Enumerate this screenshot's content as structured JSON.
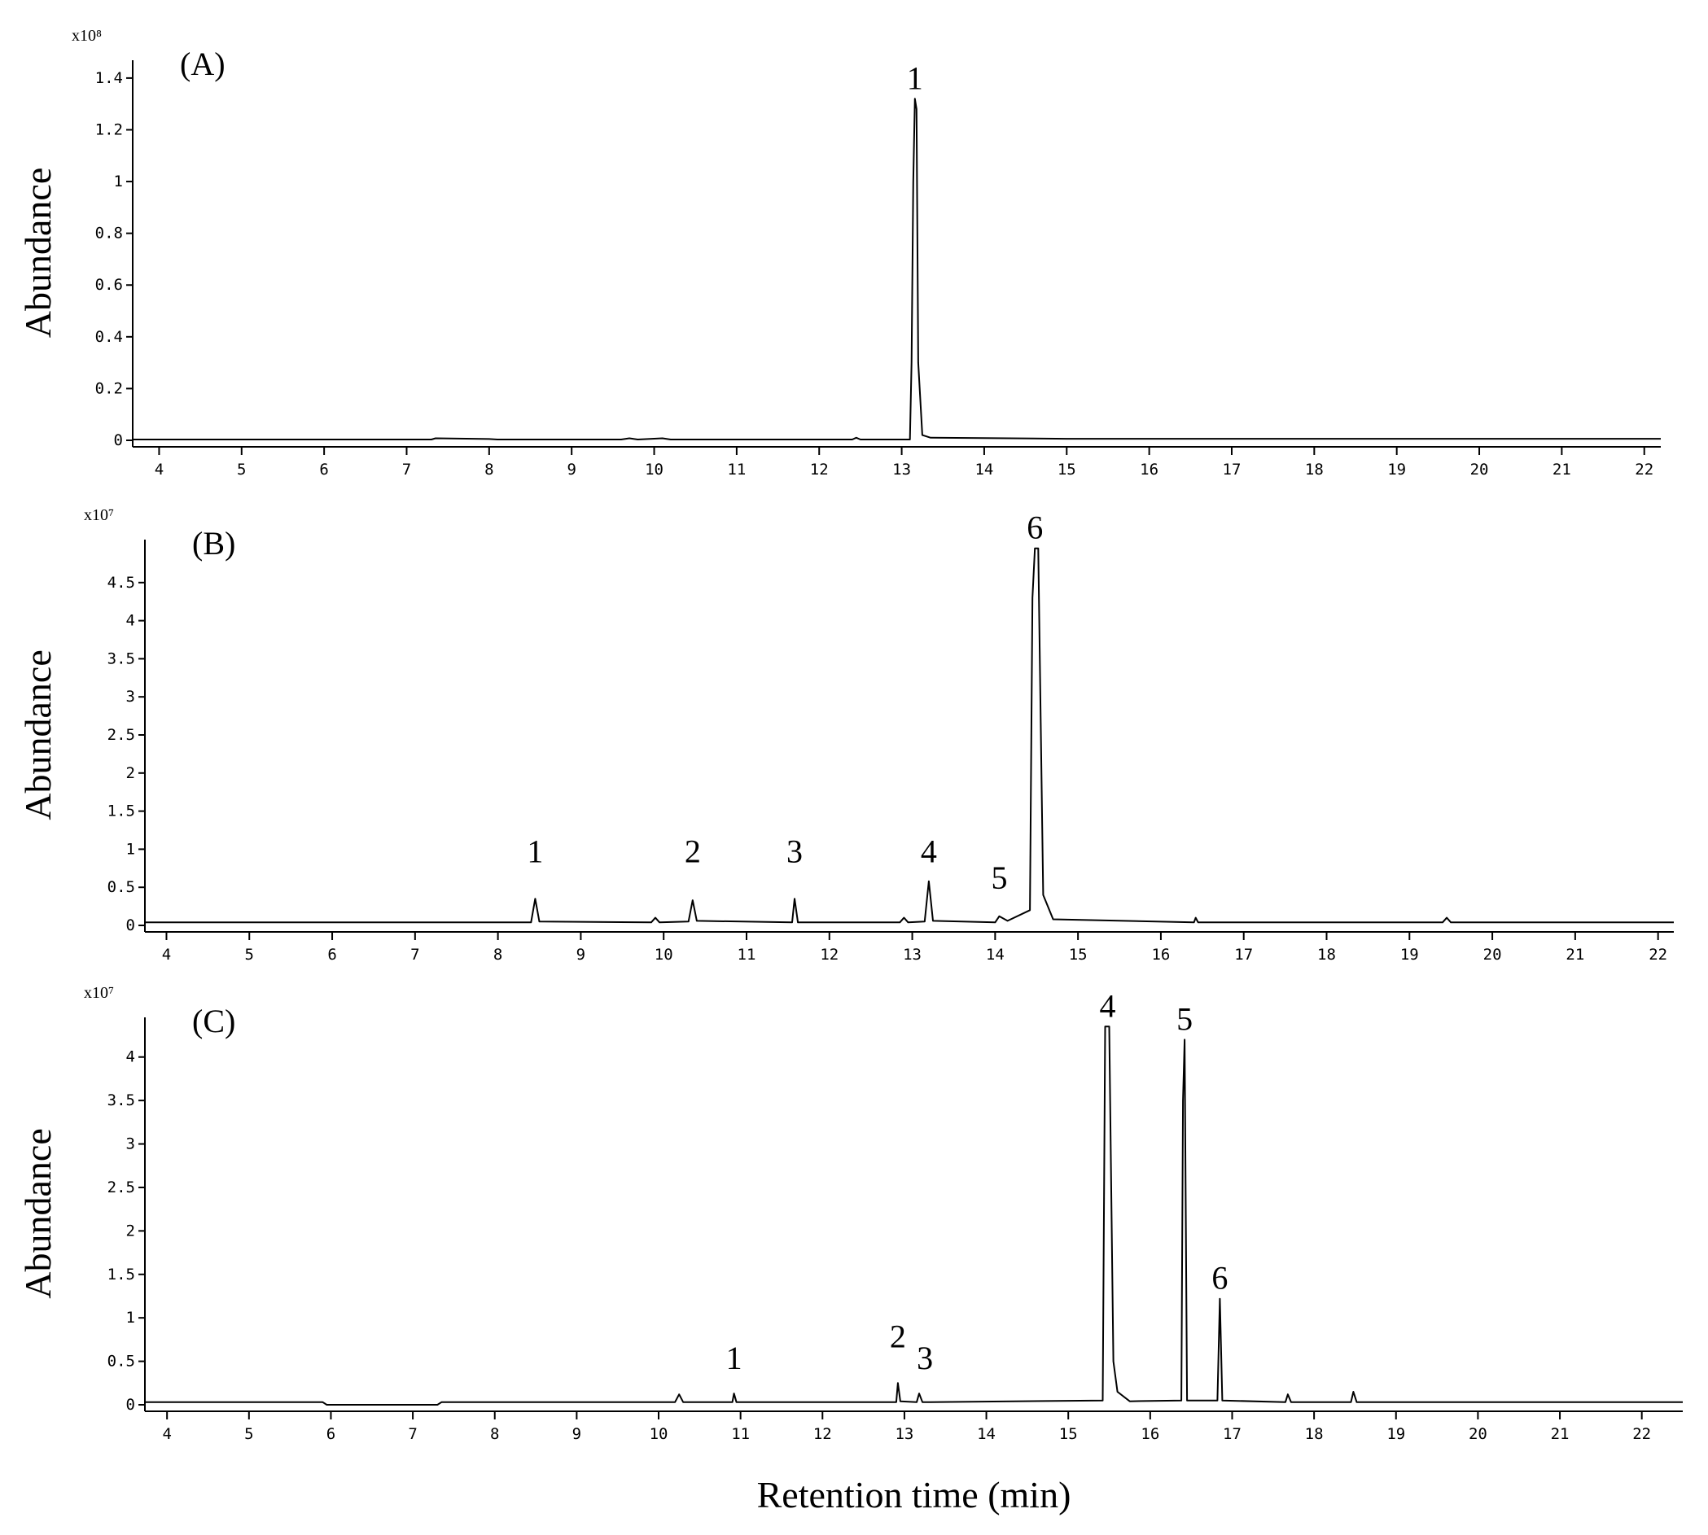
{
  "chart_data": [
    {
      "type": "line",
      "title": "(A)",
      "y_label": "Abundance",
      "scale_label": "x10⁸",
      "color": "#000000",
      "x": [
        3.68,
        7.3,
        7.35,
        8.0,
        8.1,
        9.6,
        9.7,
        9.8,
        10.1,
        10.2,
        12.4,
        12.45,
        12.5,
        13.1,
        13.12,
        13.14,
        13.16,
        13.18,
        13.2,
        13.25,
        13.35,
        15.0,
        19.0,
        22.2
      ],
      "values": [
        0.003,
        0.003,
        0.008,
        0.005,
        0.003,
        0.003,
        0.008,
        0.003,
        0.008,
        0.003,
        0.003,
        0.01,
        0.003,
        0.003,
        0.3,
        1.0,
        1.32,
        1.28,
        0.3,
        0.02,
        0.01,
        0.006,
        0.006,
        0.006
      ],
      "xlim": [
        3.68,
        22.2
      ],
      "ylim": [
        0,
        1.45
      ],
      "xticks": [
        4,
        5,
        6,
        7,
        8,
        9,
        10,
        11,
        12,
        13,
        14,
        15,
        16,
        17,
        18,
        19,
        20,
        21,
        22
      ],
      "yticks": [
        0,
        0.2,
        0.4,
        0.6,
        0.8,
        1,
        1.2,
        1.4
      ],
      "annotations": [
        {
          "text": "1",
          "x": 13.16,
          "y": 1.32
        }
      ]
    },
    {
      "type": "line",
      "title": "(B)",
      "y_label": "Abundance",
      "scale_label": "x10⁷",
      "color": "#000000",
      "x": [
        3.74,
        8.4,
        8.45,
        8.5,
        9.85,
        9.9,
        9.95,
        10.3,
        10.35,
        10.4,
        11.55,
        11.58,
        11.62,
        12.85,
        12.9,
        12.95,
        13.15,
        13.2,
        13.25,
        14.0,
        14.05,
        14.15,
        14.42,
        14.45,
        14.48,
        14.52,
        14.58,
        14.7,
        16.4,
        16.42,
        16.45,
        19.4,
        19.45,
        19.5,
        22.19
      ],
      "values": [
        0.04,
        0.04,
        0.35,
        0.05,
        0.04,
        0.1,
        0.04,
        0.05,
        0.33,
        0.06,
        0.04,
        0.35,
        0.04,
        0.04,
        0.1,
        0.04,
        0.05,
        0.58,
        0.06,
        0.04,
        0.12,
        0.06,
        0.2,
        4.3,
        4.95,
        4.95,
        0.4,
        0.08,
        0.04,
        0.1,
        0.04,
        0.04,
        0.1,
        0.04,
        0.04
      ],
      "xlim": [
        3.74,
        22.19
      ],
      "ylim": [
        0,
        5
      ],
      "xticks": [
        4,
        5,
        6,
        7,
        8,
        9,
        10,
        11,
        12,
        13,
        14,
        15,
        16,
        17,
        18,
        19,
        20,
        21,
        22
      ],
      "yticks": [
        0,
        0.5,
        1,
        1.5,
        2,
        2.5,
        3,
        3.5,
        4,
        4.5
      ],
      "annotations": [
        {
          "text": "1",
          "x": 8.45,
          "y": 0.7
        },
        {
          "text": "2",
          "x": 10.35,
          "y": 0.7
        },
        {
          "text": "3",
          "x": 11.58,
          "y": 0.7
        },
        {
          "text": "4",
          "x": 13.2,
          "y": 0.7
        },
        {
          "text": "5",
          "x": 14.05,
          "y": 0.35
        },
        {
          "text": "6",
          "x": 14.48,
          "y": 4.95
        }
      ]
    },
    {
      "type": "line",
      "title": "(C)",
      "y_label": "Abundance",
      "x_label": "Retention time (min)",
      "scale_label": "x10⁷",
      "color": "#000000",
      "x": [
        3.73,
        5.9,
        5.95,
        7.3,
        7.35,
        10.2,
        10.25,
        10.3,
        10.9,
        10.92,
        10.95,
        12.9,
        12.92,
        12.95,
        13.15,
        13.18,
        13.22,
        15.42,
        15.45,
        15.5,
        15.55,
        15.6,
        15.75,
        16.38,
        16.4,
        16.42,
        16.45,
        16.82,
        16.85,
        16.88,
        17.65,
        17.68,
        17.72,
        18.45,
        18.48,
        18.52,
        22.5
      ],
      "values": [
        0.03,
        0.03,
        0.0,
        0.0,
        0.03,
        0.03,
        0.12,
        0.03,
        0.03,
        0.13,
        0.03,
        0.03,
        0.25,
        0.04,
        0.03,
        0.13,
        0.03,
        0.05,
        4.35,
        4.35,
        0.5,
        0.15,
        0.04,
        0.05,
        3.5,
        4.2,
        0.05,
        0.05,
        1.22,
        0.05,
        0.03,
        0.12,
        0.03,
        0.03,
        0.15,
        0.03,
        0.03
      ],
      "xlim": [
        3.73,
        22.5
      ],
      "ylim": [
        0,
        4.4
      ],
      "xticks": [
        4,
        5,
        6,
        7,
        8,
        9,
        10,
        11,
        12,
        13,
        14,
        15,
        16,
        17,
        18,
        19,
        20,
        21,
        22
      ],
      "yticks": [
        0,
        0.5,
        1,
        1.5,
        2,
        2.5,
        3,
        3.5,
        4
      ],
      "annotations": [
        {
          "text": "1",
          "x": 10.92,
          "y": 0.3
        },
        {
          "text": "2",
          "x": 12.92,
          "y": 0.55
        },
        {
          "text": "3",
          "x": 13.25,
          "y": 0.3
        },
        {
          "text": "4",
          "x": 15.48,
          "y": 4.35
        },
        {
          "text": "5",
          "x": 16.42,
          "y": 4.2
        },
        {
          "text": "6",
          "x": 16.85,
          "y": 1.22
        }
      ]
    }
  ]
}
